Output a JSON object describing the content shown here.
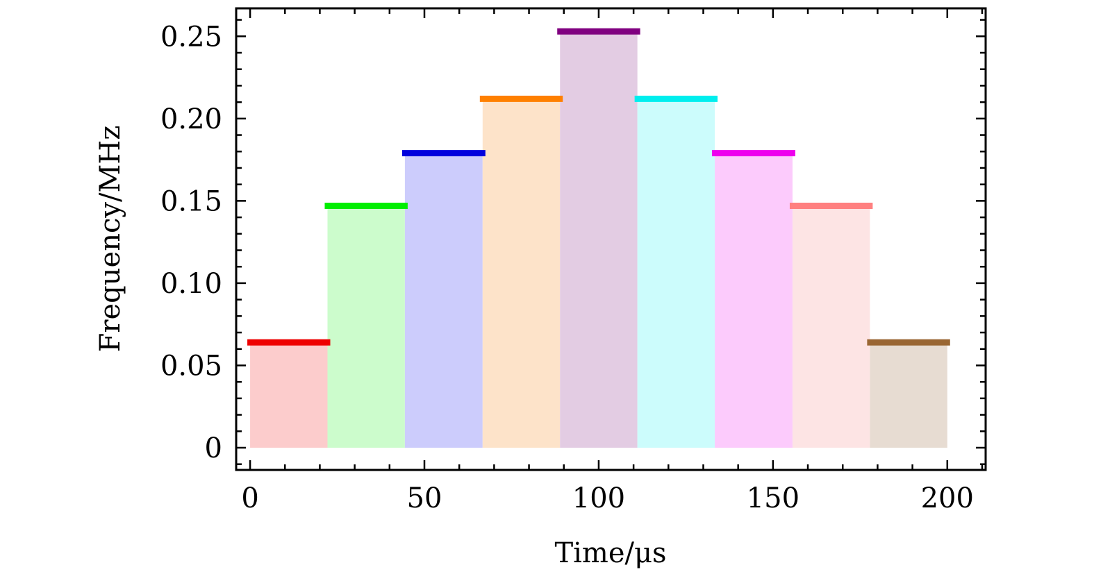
{
  "chart_data": {
    "type": "bar",
    "xlabel": "Time/μs",
    "ylabel": "Frequency/MHz",
    "xlim": [
      -4,
      211
    ],
    "ylim": [
      -0.0135,
      0.267
    ],
    "grid": false,
    "x_ticks": [
      {
        "value": 0,
        "label": "0"
      },
      {
        "value": 50,
        "label": "50"
      },
      {
        "value": 100,
        "label": "100"
      },
      {
        "value": 150,
        "label": "150"
      },
      {
        "value": 200,
        "label": "200"
      }
    ],
    "y_ticks": [
      {
        "value": 0,
        "label": "0"
      },
      {
        "value": 0.05,
        "label": "0.05"
      },
      {
        "value": 0.1,
        "label": "0.10"
      },
      {
        "value": 0.15,
        "label": "0.15"
      },
      {
        "value": 0.2,
        "label": "0.20"
      },
      {
        "value": 0.25,
        "label": "0.25"
      }
    ],
    "x_minor_step": 10,
    "y_minor_step": 0.01,
    "bars": [
      {
        "x_start": 0,
        "x_end": 22.2,
        "value": 0.064,
        "fill": "#fccccc",
        "line": "#ee0000"
      },
      {
        "x_start": 22.2,
        "x_end": 44.4,
        "value": 0.147,
        "fill": "#ccfccc",
        "line": "#00ee00"
      },
      {
        "x_start": 44.4,
        "x_end": 66.7,
        "value": 0.179,
        "fill": "#ccccfc",
        "line": "#0000dd"
      },
      {
        "x_start": 66.7,
        "x_end": 88.9,
        "value": 0.212,
        "fill": "#fde3c9",
        "line": "#ff8000"
      },
      {
        "x_start": 88.9,
        "x_end": 111.1,
        "value": 0.253,
        "fill": "#e3cce3",
        "line": "#800080"
      },
      {
        "x_start": 111.1,
        "x_end": 133.3,
        "value": 0.212,
        "fill": "#ccfcfc",
        "line": "#00eeee"
      },
      {
        "x_start": 133.3,
        "x_end": 155.6,
        "value": 0.179,
        "fill": "#fccbfc",
        "line": "#ee00ee"
      },
      {
        "x_start": 155.6,
        "x_end": 177.8,
        "value": 0.147,
        "fill": "#fde4e4",
        "line": "#ff8080"
      },
      {
        "x_start": 177.8,
        "x_end": 200,
        "value": 0.064,
        "fill": "#e7dcd2",
        "line": "#996633"
      }
    ]
  }
}
